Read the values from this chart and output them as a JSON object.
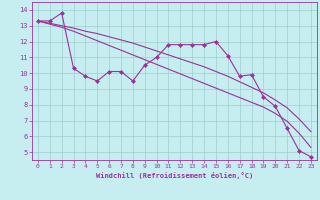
{
  "xlabel": "Windchill (Refroidissement éolien,°C)",
  "xlim": [
    -0.5,
    23.5
  ],
  "ylim": [
    4.5,
    14.5
  ],
  "yticks": [
    5,
    6,
    7,
    8,
    9,
    10,
    11,
    12,
    13,
    14
  ],
  "xticks": [
    0,
    1,
    2,
    3,
    4,
    5,
    6,
    7,
    8,
    9,
    10,
    11,
    12,
    13,
    14,
    15,
    16,
    17,
    18,
    19,
    20,
    21,
    22,
    23
  ],
  "bg_color": "#c6edef",
  "line_color": "#993399",
  "grid_color": "#9ecece",
  "data_x": [
    0,
    1,
    2,
    3,
    4,
    5,
    6,
    7,
    8,
    9,
    10,
    11,
    12,
    13,
    14,
    15,
    16,
    17,
    18,
    19,
    20,
    21,
    22,
    23
  ],
  "data_y_actual": [
    13.3,
    13.3,
    13.8,
    10.3,
    9.8,
    9.5,
    10.1,
    10.1,
    9.5,
    10.5,
    11.0,
    11.8,
    11.8,
    11.8,
    11.8,
    12.0,
    11.1,
    9.8,
    9.9,
    8.5,
    7.9,
    6.5,
    5.1,
    4.7
  ],
  "data_y_line1": [
    13.3,
    13.15,
    13.0,
    12.85,
    12.65,
    12.5,
    12.3,
    12.1,
    11.9,
    11.65,
    11.4,
    11.15,
    10.9,
    10.65,
    10.4,
    10.1,
    9.8,
    9.45,
    9.1,
    8.75,
    8.3,
    7.8,
    7.1,
    6.3
  ],
  "data_y_line2": [
    13.3,
    13.1,
    12.9,
    12.65,
    12.35,
    12.05,
    11.75,
    11.45,
    11.15,
    10.85,
    10.55,
    10.25,
    9.95,
    9.65,
    9.35,
    9.05,
    8.75,
    8.45,
    8.15,
    7.85,
    7.45,
    6.95,
    6.2,
    5.3
  ]
}
